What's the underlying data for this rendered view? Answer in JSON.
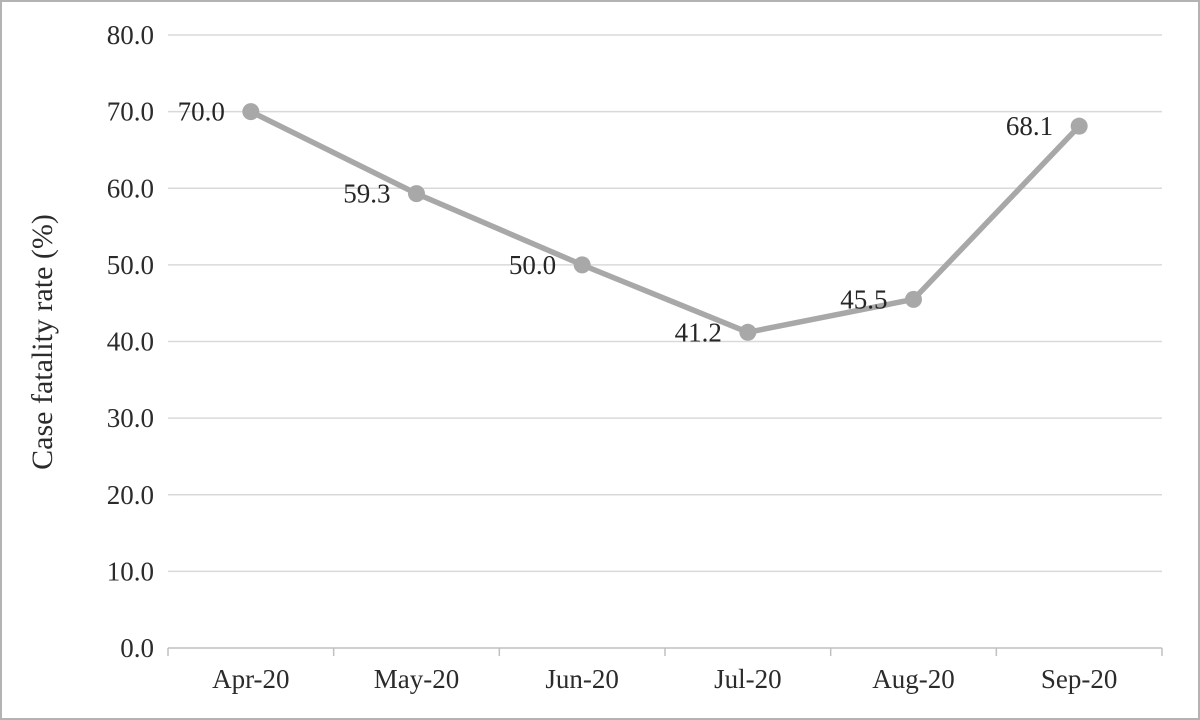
{
  "chart_data": {
    "type": "line",
    "categories": [
      "Apr-20",
      "May-20",
      "Jun-20",
      "Jul-20",
      "Aug-20",
      "Sep-20"
    ],
    "series": [
      {
        "name": "Case fatality rate",
        "values": [
          70.0,
          59.3,
          50.0,
          41.2,
          45.5,
          68.1
        ],
        "data_labels": [
          "70.0",
          "59.3",
          "50.0",
          "41.2",
          "45.5",
          "68.1"
        ]
      }
    ],
    "title": "",
    "xlabel": "",
    "ylabel": "Case fatality rate (%)",
    "ylim": [
      0,
      80
    ],
    "ytick_step": 10,
    "ytick_labels": [
      "0.0",
      "10.0",
      "20.0",
      "30.0",
      "40.0",
      "50.0",
      "60.0",
      "70.0",
      "80.0"
    ],
    "grid": true,
    "legend_position": "none",
    "colors": {
      "line": "#a8a8a8",
      "marker": "#a8a8a8",
      "gridline": "#d9d9d9",
      "axis_line": "#c0c0c0",
      "text": "#2b2b2b",
      "border": "#b3b3b3",
      "background": "#ffffff"
    }
  }
}
